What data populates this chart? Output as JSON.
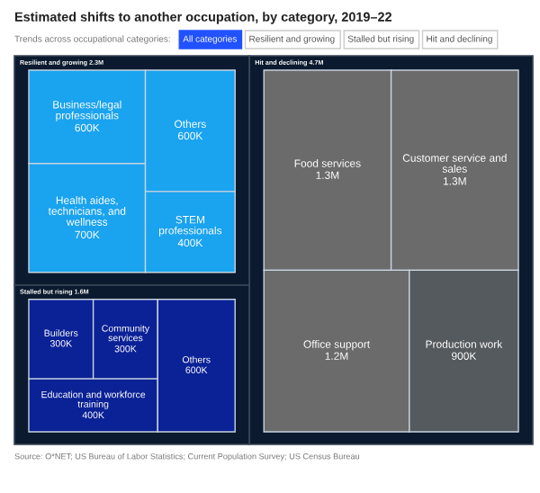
{
  "chart_data": {
    "type": "other",
    "title": "Estimated shifts to another occupation, by category, 2019–22",
    "categories": [
      "Business/legal professionals",
      "Health aides, technicians, and wellness",
      "Others",
      "STEM professionals",
      "Food services",
      "Customer service and sales",
      "Office support",
      "Production work",
      "Builders",
      "Community services",
      "Education and workforce training",
      "Others"
    ],
    "values": [
      600000,
      700000,
      600000,
      400000,
      1300000,
      1300000,
      1200000,
      900000,
      300000,
      300000,
      400000,
      600000
    ],
    "value_labels": [
      "600K",
      "700K",
      "600K",
      "400K",
      "1.3M",
      "1.3M",
      "1.2M",
      "900K",
      "300K",
      "300K",
      "400K",
      "600K"
    ],
    "colors": [
      "#1aa3ef",
      "#1aa3ef",
      "#1aa3ef",
      "#1aa3ef",
      "#6b6b6b",
      "#6b6b6b",
      "#6b6b6b",
      "#555a5e",
      "#0b2196",
      "#0b2196",
      "#0b2196",
      "#0b2196"
    ],
    "annotations": [
      "Trends across occupational categories:",
      "All categories",
      "Resilient and growing",
      "Stalled but rising",
      "Hit and declining",
      "Resilient and growing 2.3M",
      "Hit and declining 4.7M",
      "Stalled but rising 1.6M",
      "Source: O*NET; US Bureau of Labor Statistics; Current Population Survey; US Census Bureau"
    ]
  }
}
